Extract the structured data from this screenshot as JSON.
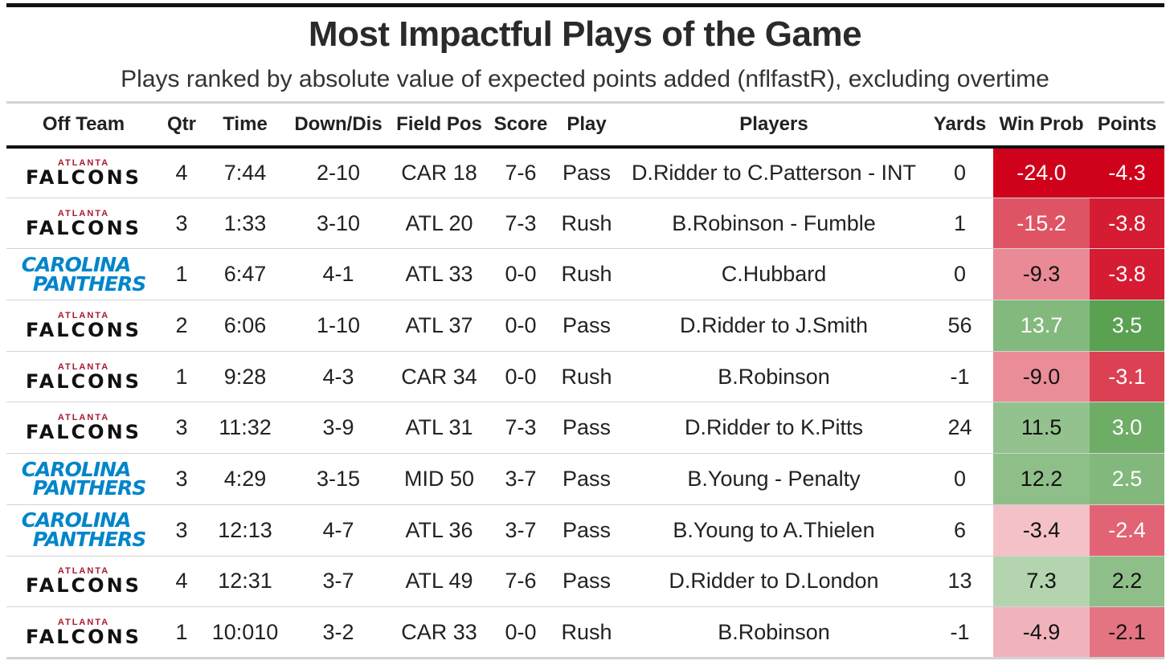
{
  "title": "Most Impactful Plays of the Game",
  "subtitle": "Plays ranked by absolute value of expected points added (nflfastR), excluding overtime",
  "columns": [
    "Off Team",
    "Qtr",
    "Time",
    "Down/Dis",
    "Field Pos",
    "Score",
    "Play",
    "Players",
    "Yards",
    "Win Prob",
    "Points"
  ],
  "teams": {
    "ATL": {
      "line1": "ATLANTA",
      "line2": "FALCONS",
      "primary": "#a71930",
      "secondary": "#111111"
    },
    "CAR": {
      "line1": "CAROLINA",
      "line2": "PANTHERS",
      "primary": "#0085ca"
    }
  },
  "colors": {
    "neg_strong": "#d0021b",
    "pos_strong": "#3a8f2f"
  },
  "chart_data": {
    "type": "table",
    "title": "Most Impactful Plays of the Game",
    "subtitle": "Plays ranked by absolute value of expected points added (nflfastR), excluding overtime",
    "columns": [
      "Off Team",
      "Qtr",
      "Time",
      "Down/Dis",
      "Field Pos",
      "Score",
      "Play",
      "Players",
      "Yards",
      "Win Prob",
      "Points"
    ],
    "rows": [
      {
        "team": "ATL",
        "qtr": "4",
        "time": "7:44",
        "down": "2-10",
        "field": "CAR 18",
        "score": "7-6",
        "play": "Pass",
        "players": "D.Ridder to C.Patterson - INT",
        "yards": "0",
        "wp": "-24.0",
        "pts": "-4.3"
      },
      {
        "team": "ATL",
        "qtr": "3",
        "time": "1:33",
        "down": "3-10",
        "field": "ATL 20",
        "score": "7-3",
        "play": "Rush",
        "players": "B.Robinson - Fumble",
        "yards": "1",
        "wp": "-15.2",
        "pts": "-3.8"
      },
      {
        "team": "CAR",
        "qtr": "1",
        "time": "6:47",
        "down": "4-1",
        "field": "ATL 33",
        "score": "0-0",
        "play": "Rush",
        "players": "C.Hubbard",
        "yards": "0",
        "wp": "-9.3",
        "pts": "-3.8"
      },
      {
        "team": "ATL",
        "qtr": "2",
        "time": "6:06",
        "down": "1-10",
        "field": "ATL 37",
        "score": "0-0",
        "play": "Pass",
        "players": "D.Ridder to J.Smith",
        "yards": "56",
        "wp": "13.7",
        "pts": "3.5"
      },
      {
        "team": "ATL",
        "qtr": "1",
        "time": "9:28",
        "down": "4-3",
        "field": "CAR 34",
        "score": "0-0",
        "play": "Rush",
        "players": "B.Robinson",
        "yards": "-1",
        "wp": "-9.0",
        "pts": "-3.1"
      },
      {
        "team": "ATL",
        "qtr": "3",
        "time": "11:32",
        "down": "3-9",
        "field": "ATL 31",
        "score": "7-3",
        "play": "Pass",
        "players": "D.Ridder to K.Pitts",
        "yards": "24",
        "wp": "11.5",
        "pts": "3.0"
      },
      {
        "team": "CAR",
        "qtr": "3",
        "time": "4:29",
        "down": "3-15",
        "field": "MID 50",
        "score": "3-7",
        "play": "Pass",
        "players": "B.Young - Penalty",
        "yards": "0",
        "wp": "12.2",
        "pts": "2.5"
      },
      {
        "team": "CAR",
        "qtr": "3",
        "time": "12:13",
        "down": "4-7",
        "field": "ATL 36",
        "score": "3-7",
        "play": "Pass",
        "players": "B.Young to A.Thielen",
        "yards": "6",
        "wp": "-3.4",
        "pts": "-2.4"
      },
      {
        "team": "ATL",
        "qtr": "4",
        "time": "12:31",
        "down": "3-7",
        "field": "ATL 49",
        "score": "7-6",
        "play": "Pass",
        "players": "D.Ridder to D.London",
        "yards": "13",
        "wp": "7.3",
        "pts": "2.2"
      },
      {
        "team": "ATL",
        "qtr": "1",
        "time": "10:010",
        "down": "3-2",
        "field": "CAR 33",
        "score": "0-0",
        "play": "Rush",
        "players": "B.Robinson",
        "yards": "-1",
        "wp": "-4.9",
        "pts": "-2.1"
      }
    ]
  }
}
